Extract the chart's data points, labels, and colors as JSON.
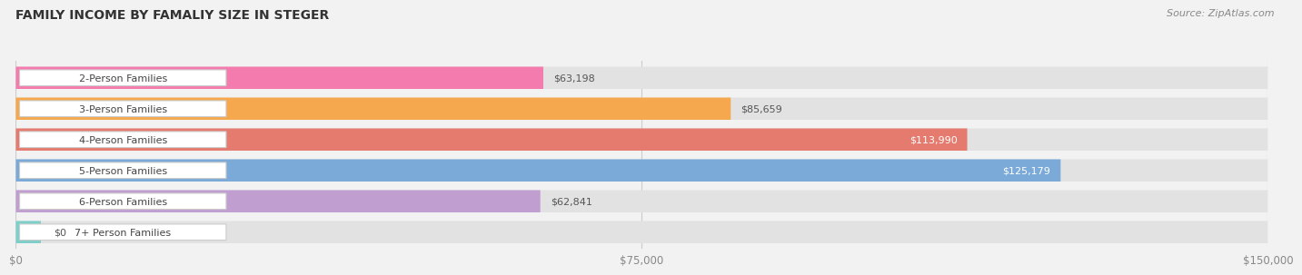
{
  "title": "FAMILY INCOME BY FAMALIY SIZE IN STEGER",
  "source": "Source: ZipAtlas.com",
  "categories": [
    "2-Person Families",
    "3-Person Families",
    "4-Person Families",
    "5-Person Families",
    "6-Person Families",
    "7+ Person Families"
  ],
  "values": [
    63198,
    85659,
    113990,
    125179,
    62841,
    0
  ],
  "bar_colors": [
    "#F47BAD",
    "#F5A84E",
    "#E57B6E",
    "#7BAAD8",
    "#C09FD0",
    "#7ECECA"
  ],
  "xlim": [
    0,
    150000
  ],
  "xtick_vals": [
    0,
    75000,
    150000
  ],
  "xtick_labels": [
    "$0",
    "$75,000",
    "$150,000"
  ],
  "value_labels": [
    "$63,198",
    "$85,659",
    "$113,990",
    "$125,179",
    "$62,841",
    "$0"
  ],
  "value_inside": [
    false,
    false,
    true,
    true,
    false,
    false
  ],
  "bg_color": "#f2f2f2",
  "bar_bg_color": "#e2e2e2",
  "figsize": [
    14.06,
    3.05
  ],
  "dpi": 100
}
